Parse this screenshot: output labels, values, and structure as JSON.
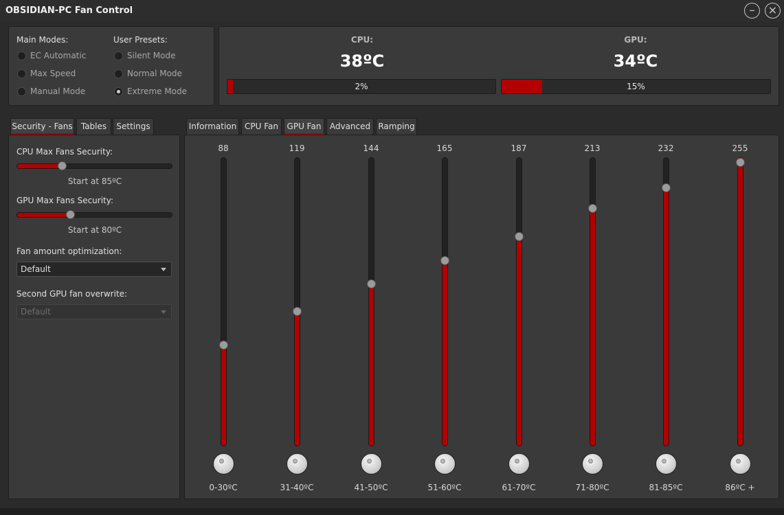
{
  "window": {
    "title": "OBSIDIAN-PC Fan Control"
  },
  "modes": {
    "main_title": "Main Modes:",
    "main": [
      {
        "label": "EC Automatic",
        "checked": false
      },
      {
        "label": "Max Speed",
        "checked": false
      },
      {
        "label": "Manual Mode",
        "checked": false
      }
    ],
    "presets_title": "User Presets:",
    "presets": [
      {
        "label": "Silent Mode",
        "checked": false
      },
      {
        "label": "Normal Mode",
        "checked": false
      },
      {
        "label": "Extreme Mode",
        "checked": true
      }
    ]
  },
  "temps": {
    "cpu": {
      "label": "CPU:",
      "value": "38ºC",
      "bar_text": "2%",
      "percent": 2
    },
    "gpu": {
      "label": "GPU:",
      "value": "34ºC",
      "bar_text": "15%",
      "percent": 15
    }
  },
  "left_tabs": [
    "Security - Fans",
    "Tables",
    "Settings"
  ],
  "right_tabs": [
    "Information",
    "CPU Fan",
    "GPU Fan",
    "Advanced",
    "Ramping"
  ],
  "security": {
    "cpu_label": "CPU Max Fans Security:",
    "cpu_hint": "Start at 85ºC",
    "cpu_level": 0.29,
    "gpu_label": "GPU Max Fans Security:",
    "gpu_hint": "Start at 80ºC",
    "gpu_level": 0.34,
    "opt_label": "Fan amount optimization:",
    "opt_value": "Default",
    "overwrite_label": "Second GPU fan overwrite:",
    "overwrite_value": "Default"
  },
  "curve": {
    "max": 255,
    "points": [
      {
        "value": "88",
        "range": "0-30ºC"
      },
      {
        "value": "119",
        "range": "31-40ºC"
      },
      {
        "value": "144",
        "range": "41-50ºC"
      },
      {
        "value": "165",
        "range": "51-60ºC"
      },
      {
        "value": "187",
        "range": "61-70ºC"
      },
      {
        "value": "213",
        "range": "71-80ºC"
      },
      {
        "value": "232",
        "range": "81-85ºC"
      },
      {
        "value": "255",
        "range": "86ºC +"
      }
    ]
  }
}
